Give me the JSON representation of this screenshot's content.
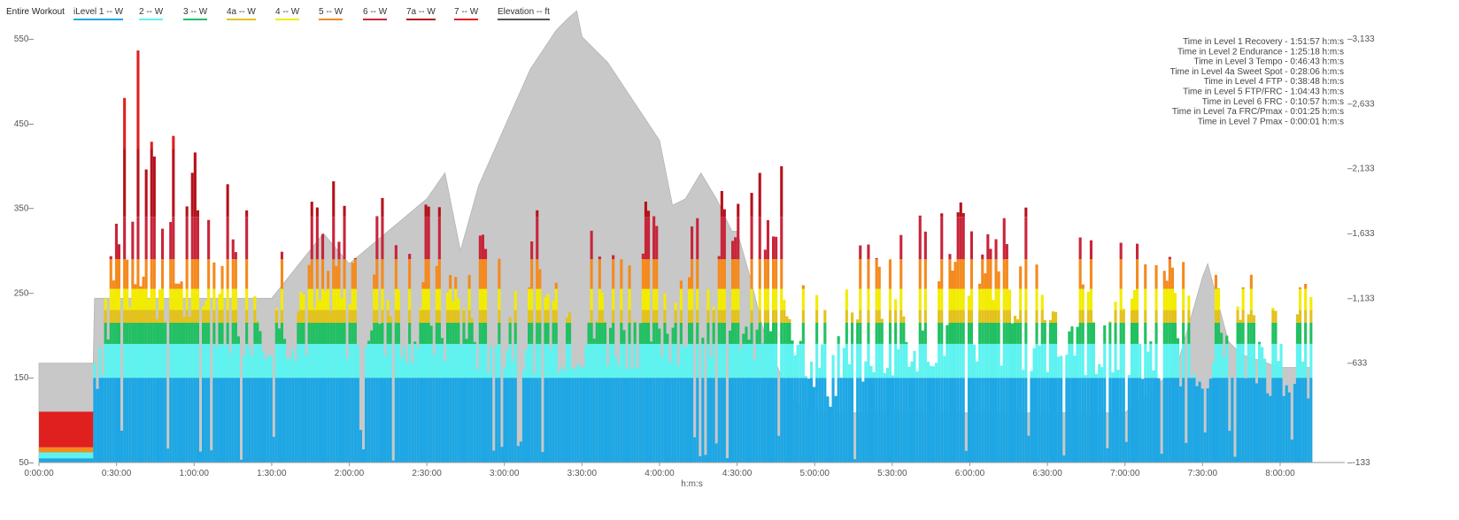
{
  "header": {
    "title": "Entire Workout",
    "legend": [
      {
        "label": "iLevel 1  -- W",
        "color": "#1ea7e4"
      },
      {
        "label": "2  -- W",
        "color": "#5ef3f0"
      },
      {
        "label": "3  -- W",
        "color": "#21c063"
      },
      {
        "label": "4a  -- W",
        "color": "#e3c21c"
      },
      {
        "label": "4  -- W",
        "color": "#f2ec00"
      },
      {
        "label": "5  -- W",
        "color": "#f48a1e"
      },
      {
        "label": "6  -- W",
        "color": "#c8253a"
      },
      {
        "label": "7a  -- W",
        "color": "#b5121b"
      },
      {
        "label": "7  -- W",
        "color": "#e01f1f"
      },
      {
        "label": "Elevation  -- ft",
        "color": "#555555"
      }
    ]
  },
  "stats": [
    "Time in Level 1 Recovery - 1:51:57 h:m:s",
    "Time in Level 2 Endurance - 1:25:18 h:m:s",
    "Time in Level 3 Tempo - 0:46:43 h:m:s",
    "Time in Level 4a Sweet Spot - 0:28:06 h:m:s",
    "Time in Level 4 FTP - 0:38:48 h:m:s",
    "Time in Level 5 FTP/FRC - 1:04:43 h:m:s",
    "Time in Level 6 FRC - 0:10:57 h:m:s",
    "Time in Level 7a FRC/Pmax - 0:01:25 h:m:s",
    "Time in Level 7 Pmax - 0:00:01 h:m:s"
  ],
  "chart_data": {
    "type": "area",
    "xlabel": "h:m:s",
    "x_ticks": [
      "0:00:00",
      "0:30:00",
      "1:00:00",
      "1:30:00",
      "2:00:00",
      "2:30:00",
      "3:00:00",
      "3:30:00",
      "4:00:00",
      "4:30:00",
      "5:00:00",
      "5:30:00",
      "6:00:00",
      "6:30:00",
      "7:00:00",
      "7:30:00",
      "8:00:00"
    ],
    "x_range_minutes": [
      0,
      505
    ],
    "left_axis": {
      "label": "W",
      "ticks": [
        50,
        150,
        250,
        350,
        450,
        550
      ],
      "range": [
        50,
        550
      ]
    },
    "right_axis": {
      "label": "ft",
      "ticks": [
        -133,
        633,
        1133,
        1633,
        2133,
        2633,
        3133
      ],
      "range": [
        -133,
        3133
      ]
    },
    "elevation_ft": {
      "x_minutes": [
        0,
        21,
        21.5,
        30,
        60,
        90,
        110,
        120,
        150,
        157,
        163,
        170,
        180,
        190,
        200,
        205,
        208,
        210,
        215,
        220,
        230,
        240,
        245,
        250,
        256,
        262,
        268,
        270,
        275,
        280,
        285,
        290,
        295,
        300,
        305,
        310,
        330,
        360,
        390,
        420,
        440,
        450,
        452,
        454,
        460,
        465,
        480,
        491,
        492
      ],
      "values": [
        633,
        633,
        1133,
        1133,
        1133,
        1133,
        1633,
        1400,
        1900,
        2100,
        1500,
        2000,
        2450,
        2900,
        3200,
        3300,
        3350,
        3150,
        3050,
        2950,
        2650,
        2350,
        1850,
        1900,
        2100,
        1900,
        1650,
        1650,
        1300,
        900,
        633,
        400,
        300,
        250,
        250,
        250,
        250,
        250,
        250,
        250,
        600,
        1300,
        1400,
        1250,
        800,
        700,
        600,
        600,
        600
      ]
    },
    "power_peaks_w": [
      {
        "x_minutes": 21,
        "w": 260
      },
      {
        "x_minutes": 30,
        "w": 470
      },
      {
        "x_minutes": 39,
        "w": 555
      },
      {
        "x_minutes": 42,
        "w": 460
      },
      {
        "x_minutes": 58,
        "w": 450
      },
      {
        "x_minutes": 70,
        "w": 420
      },
      {
        "x_minutes": 93,
        "w": 390
      },
      {
        "x_minutes": 110,
        "w": 390
      },
      {
        "x_minutes": 132,
        "w": 400
      },
      {
        "x_minutes": 168,
        "w": 340
      },
      {
        "x_minutes": 220,
        "w": 360
      },
      {
        "x_minutes": 290,
        "w": 405
      },
      {
        "x_minutes": 305,
        "w": 230
      },
      {
        "x_minutes": 320,
        "w": 330
      },
      {
        "x_minutes": 348,
        "w": 370
      },
      {
        "x_minutes": 380,
        "w": 360
      },
      {
        "x_minutes": 465,
        "w": 285
      },
      {
        "x_minutes": 485,
        "w": 265
      }
    ],
    "zone_colors": [
      "#1ea7e4",
      "#5ef3f0",
      "#21c063",
      "#e3c21c",
      "#f2ec00",
      "#f48a1e",
      "#c8253a",
      "#b5121b",
      "#e01f1f"
    ],
    "elevation_color": "#c8c8c8"
  }
}
